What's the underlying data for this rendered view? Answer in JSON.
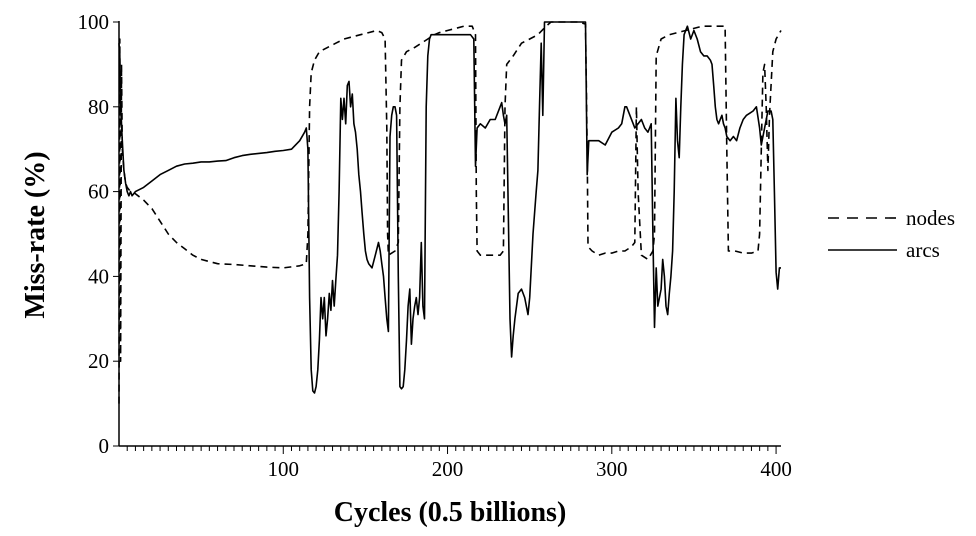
{
  "chart_data": {
    "type": "line",
    "title": "",
    "xlabel": "Cycles (0.5 billions)",
    "ylabel": "Miss-rate (%)",
    "xlim": [
      0,
      403
    ],
    "ylim": [
      0,
      100
    ],
    "x_ticks": [
      100,
      200,
      300,
      400
    ],
    "y_ticks": [
      0,
      20,
      40,
      60,
      80,
      100
    ],
    "x_minor_step": 5,
    "grid": false,
    "legend_position": "right",
    "series": [
      {
        "name": "nodes",
        "line_style": "dashed",
        "color": "#000000",
        "points": [
          [
            0,
            10
          ],
          [
            0.5,
            96
          ],
          [
            1,
            20
          ],
          [
            1.5,
            90
          ],
          [
            2,
            70
          ],
          [
            3,
            65
          ],
          [
            4,
            62
          ],
          [
            5,
            61
          ],
          [
            7,
            60
          ],
          [
            10,
            59.5
          ],
          [
            15,
            58
          ],
          [
            20,
            56
          ],
          [
            25,
            53
          ],
          [
            30,
            50
          ],
          [
            35,
            48
          ],
          [
            40,
            46.5
          ],
          [
            45,
            45
          ],
          [
            50,
            44
          ],
          [
            55,
            43.5
          ],
          [
            60,
            43
          ],
          [
            70,
            42.8
          ],
          [
            80,
            42.5
          ],
          [
            90,
            42.2
          ],
          [
            100,
            42
          ],
          [
            110,
            42.5
          ],
          [
            114,
            43
          ],
          [
            115,
            50
          ],
          [
            116,
            80
          ],
          [
            117,
            88
          ],
          [
            119,
            91
          ],
          [
            122,
            93
          ],
          [
            127,
            94
          ],
          [
            132,
            95
          ],
          [
            137,
            96
          ],
          [
            142,
            96.5
          ],
          [
            147,
            97
          ],
          [
            152,
            97.5
          ],
          [
            157,
            98
          ],
          [
            160,
            97.5
          ],
          [
            162,
            96
          ],
          [
            163,
            75
          ],
          [
            163.5,
            50
          ],
          [
            164,
            45
          ],
          [
            168,
            46
          ],
          [
            170,
            48
          ],
          [
            171,
            80
          ],
          [
            172,
            91
          ],
          [
            175,
            93
          ],
          [
            180,
            94
          ],
          [
            184,
            95
          ],
          [
            188,
            96
          ],
          [
            192,
            97
          ],
          [
            195,
            97.5
          ],
          [
            200,
            98
          ],
          [
            205,
            98.5
          ],
          [
            210,
            99
          ],
          [
            215,
            99
          ],
          [
            217,
            97
          ],
          [
            217.5,
            60
          ],
          [
            218,
            46
          ],
          [
            220,
            45
          ],
          [
            226,
            45
          ],
          [
            232,
            45
          ],
          [
            234,
            46
          ],
          [
            235,
            80
          ],
          [
            236,
            90
          ],
          [
            240,
            92
          ],
          [
            245,
            95
          ],
          [
            250,
            96
          ],
          [
            255,
            97
          ],
          [
            260,
            99
          ],
          [
            263,
            100
          ],
          [
            270,
            100
          ],
          [
            280,
            100
          ],
          [
            284,
            99.5
          ],
          [
            285,
            70
          ],
          [
            285.5,
            47
          ],
          [
            288,
            46
          ],
          [
            292,
            45
          ],
          [
            296,
            45.5
          ],
          [
            300,
            45.5
          ],
          [
            304,
            46
          ],
          [
            308,
            46
          ],
          [
            312,
            47
          ],
          [
            314,
            48
          ],
          [
            315,
            80
          ],
          [
            316,
            60
          ],
          [
            318,
            45
          ],
          [
            322,
            44
          ],
          [
            325,
            46
          ],
          [
            326,
            50
          ],
          [
            327,
            92
          ],
          [
            330,
            96
          ],
          [
            335,
            97
          ],
          [
            340,
            97.5
          ],
          [
            345,
            98
          ],
          [
            350,
            98.5
          ],
          [
            355,
            99
          ],
          [
            360,
            99
          ],
          [
            365,
            99
          ],
          [
            369,
            99
          ],
          [
            370,
            70
          ],
          [
            371,
            46
          ],
          [
            375,
            46
          ],
          [
            380,
            45.5
          ],
          [
            385,
            45.5
          ],
          [
            389,
            46
          ],
          [
            390,
            50
          ],
          [
            391,
            70
          ],
          [
            392,
            88
          ],
          [
            393,
            90
          ],
          [
            394,
            80
          ],
          [
            395,
            65
          ],
          [
            396,
            78
          ],
          [
            398,
            93
          ],
          [
            400,
            96
          ],
          [
            403,
            98
          ]
        ]
      },
      {
        "name": "arcs",
        "line_style": "solid",
        "color": "#000000",
        "points": [
          [
            0,
            95
          ],
          [
            0.5,
            92
          ],
          [
            1,
            80
          ],
          [
            2,
            72
          ],
          [
            3,
            65
          ],
          [
            4,
            62
          ],
          [
            5,
            60
          ],
          [
            6,
            59
          ],
          [
            7,
            60
          ],
          [
            8,
            59
          ],
          [
            10,
            60
          ],
          [
            15,
            61
          ],
          [
            20,
            62.5
          ],
          [
            25,
            64
          ],
          [
            30,
            65
          ],
          [
            35,
            66
          ],
          [
            40,
            66.5
          ],
          [
            45,
            66.7
          ],
          [
            50,
            67
          ],
          [
            55,
            67
          ],
          [
            60,
            67.2
          ],
          [
            65,
            67.3
          ],
          [
            70,
            68
          ],
          [
            75,
            68.5
          ],
          [
            80,
            68.8
          ],
          [
            85,
            69
          ],
          [
            90,
            69.2
          ],
          [
            95,
            69.5
          ],
          [
            100,
            69.7
          ],
          [
            105,
            70
          ],
          [
            110,
            72
          ],
          [
            113,
            74
          ],
          [
            114,
            75
          ],
          [
            115,
            70
          ],
          [
            116,
            35
          ],
          [
            117,
            18
          ],
          [
            118,
            13
          ],
          [
            119,
            12.5
          ],
          [
            120,
            14
          ],
          [
            121,
            18
          ],
          [
            122,
            25
          ],
          [
            123,
            35
          ],
          [
            124,
            30
          ],
          [
            125,
            35
          ],
          [
            126,
            26
          ],
          [
            127,
            30
          ],
          [
            128,
            36
          ],
          [
            129,
            32
          ],
          [
            130,
            39
          ],
          [
            131,
            33
          ],
          [
            132,
            39
          ],
          [
            133,
            45
          ],
          [
            134,
            60
          ],
          [
            135,
            82
          ],
          [
            136,
            77
          ],
          [
            137,
            82
          ],
          [
            138,
            76
          ],
          [
            139,
            85
          ],
          [
            140,
            86
          ],
          [
            141,
            80
          ],
          [
            142,
            83
          ],
          [
            143,
            76
          ],
          [
            144,
            74
          ],
          [
            145,
            70
          ],
          [
            146,
            64
          ],
          [
            147,
            60
          ],
          [
            148,
            55
          ],
          [
            149,
            50
          ],
          [
            150,
            46
          ],
          [
            151,
            44
          ],
          [
            152,
            43
          ],
          [
            154,
            42
          ],
          [
            156,
            45
          ],
          [
            158,
            48
          ],
          [
            159,
            46
          ],
          [
            160,
            43
          ],
          [
            161,
            40
          ],
          [
            162,
            35
          ],
          [
            163,
            30
          ],
          [
            164,
            27
          ],
          [
            165,
            73
          ],
          [
            166,
            78
          ],
          [
            167,
            80
          ],
          [
            168,
            80
          ],
          [
            169,
            78
          ],
          [
            170,
            40
          ],
          [
            171,
            14
          ],
          [
            172,
            13.5
          ],
          [
            173,
            14
          ],
          [
            174,
            18
          ],
          [
            175,
            25
          ],
          [
            176,
            33
          ],
          [
            177,
            37
          ],
          [
            178,
            24
          ],
          [
            179,
            30
          ],
          [
            180,
            33
          ],
          [
            181,
            35
          ],
          [
            182,
            31
          ],
          [
            183,
            35
          ],
          [
            184,
            48
          ],
          [
            185,
            33
          ],
          [
            186,
            30
          ],
          [
            187,
            80
          ],
          [
            188,
            92
          ],
          [
            189,
            96
          ],
          [
            190,
            97
          ],
          [
            195,
            97
          ],
          [
            200,
            97
          ],
          [
            205,
            97
          ],
          [
            210,
            97
          ],
          [
            214,
            97
          ],
          [
            216,
            96
          ],
          [
            217,
            66
          ],
          [
            218,
            75
          ],
          [
            220,
            76
          ],
          [
            223,
            75
          ],
          [
            226,
            77
          ],
          [
            229,
            77
          ],
          [
            232,
            80
          ],
          [
            233,
            81
          ],
          [
            234,
            78
          ],
          [
            235,
            76
          ],
          [
            236,
            78
          ],
          [
            237,
            55
          ],
          [
            238,
            30
          ],
          [
            239,
            21
          ],
          [
            240,
            26
          ],
          [
            241,
            30
          ],
          [
            243,
            36
          ],
          [
            245,
            37
          ],
          [
            247,
            35
          ],
          [
            249,
            31
          ],
          [
            250,
            35
          ],
          [
            252,
            50
          ],
          [
            254,
            60
          ],
          [
            255,
            65
          ],
          [
            256,
            80
          ],
          [
            257,
            95
          ],
          [
            258,
            78
          ],
          [
            259,
            100
          ],
          [
            265,
            100
          ],
          [
            270,
            100
          ],
          [
            275,
            100
          ],
          [
            280,
            100
          ],
          [
            284,
            100
          ],
          [
            285,
            64
          ],
          [
            286,
            72
          ],
          [
            288,
            72
          ],
          [
            292,
            72
          ],
          [
            296,
            71
          ],
          [
            300,
            74
          ],
          [
            304,
            75
          ],
          [
            306,
            76
          ],
          [
            308,
            80
          ],
          [
            309,
            80
          ],
          [
            311,
            78
          ],
          [
            313,
            76
          ],
          [
            314,
            75
          ],
          [
            316,
            76
          ],
          [
            318,
            77
          ],
          [
            320,
            75
          ],
          [
            322,
            74
          ],
          [
            323,
            75
          ],
          [
            324,
            76
          ],
          [
            325,
            50
          ],
          [
            326,
            28
          ],
          [
            327,
            42
          ],
          [
            328,
            33
          ],
          [
            330,
            37
          ],
          [
            331,
            44
          ],
          [
            332,
            40
          ],
          [
            333,
            33
          ],
          [
            334,
            31
          ],
          [
            335,
            36
          ],
          [
            336,
            40
          ],
          [
            337,
            46
          ],
          [
            338,
            60
          ],
          [
            339,
            82
          ],
          [
            340,
            72
          ],
          [
            341,
            68
          ],
          [
            342,
            80
          ],
          [
            343,
            90
          ],
          [
            344,
            97
          ],
          [
            346,
            99
          ],
          [
            348,
            96
          ],
          [
            350,
            98
          ],
          [
            352,
            96
          ],
          [
            354,
            93
          ],
          [
            356,
            92
          ],
          [
            358,
            92
          ],
          [
            360,
            91
          ],
          [
            361,
            90
          ],
          [
            362,
            85
          ],
          [
            363,
            80
          ],
          [
            364,
            77
          ],
          [
            365,
            76
          ],
          [
            366,
            77
          ],
          [
            367,
            78
          ],
          [
            368,
            76
          ],
          [
            369,
            75
          ],
          [
            370,
            73
          ],
          [
            372,
            72
          ],
          [
            374,
            73
          ],
          [
            376,
            72
          ],
          [
            378,
            75
          ],
          [
            380,
            77
          ],
          [
            382,
            78
          ],
          [
            384,
            78.5
          ],
          [
            386,
            79
          ],
          [
            388,
            80
          ],
          [
            390,
            75
          ],
          [
            391,
            71
          ],
          [
            393,
            75
          ],
          [
            395,
            79
          ],
          [
            397,
            79
          ],
          [
            398,
            77
          ],
          [
            399,
            60
          ],
          [
            400,
            41
          ],
          [
            401,
            37
          ],
          [
            402,
            42
          ],
          [
            403,
            42
          ]
        ]
      }
    ]
  }
}
